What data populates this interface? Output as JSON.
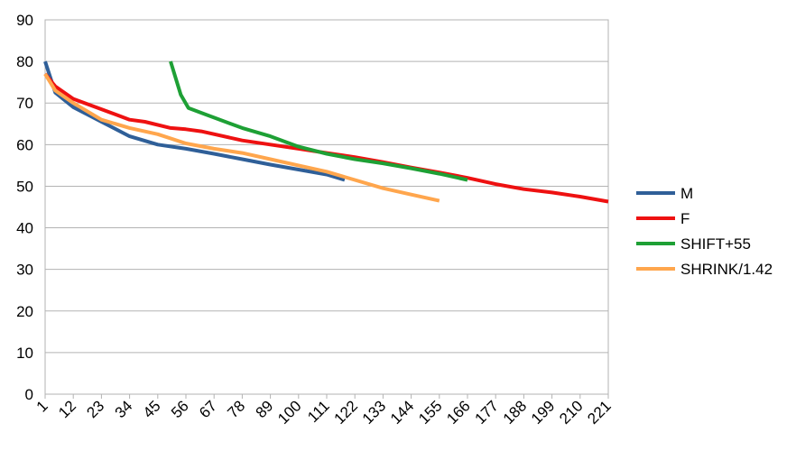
{
  "chart_data": {
    "type": "line",
    "xlim": [
      1,
      221
    ],
    "xticks": [
      1,
      12,
      23,
      34,
      45,
      56,
      67,
      78,
      89,
      100,
      111,
      122,
      133,
      144,
      155,
      166,
      177,
      188,
      199,
      210,
      221
    ],
    "ylim": [
      0,
      90
    ],
    "yticks": [
      0,
      10,
      20,
      30,
      40,
      50,
      60,
      70,
      80,
      90
    ],
    "grid": true,
    "legend": "right",
    "series": [
      {
        "name": "M",
        "color": "#2f5f98",
        "x": [
          1,
          5,
          12,
          23,
          34,
          45,
          56,
          67,
          78,
          89,
          100,
          111,
          118
        ],
        "values": [
          80,
          72.5,
          69,
          65.5,
          62,
          60,
          59,
          57.8,
          56.5,
          55.2,
          54,
          52.8,
          51.5
        ]
      },
      {
        "name": "F",
        "color": "#ee1111",
        "x": [
          1,
          5,
          12,
          23,
          34,
          40,
          50,
          56,
          62,
          78,
          89,
          100,
          111,
          122,
          133,
          144,
          155,
          166,
          177,
          188,
          199,
          210,
          221
        ],
        "values": [
          77,
          74,
          71,
          68.5,
          66,
          65.5,
          64,
          63.7,
          63.2,
          61,
          60,
          59,
          58,
          57,
          55.8,
          54.5,
          53.3,
          52,
          50.5,
          49.3,
          48.5,
          47.5,
          46.3
        ]
      },
      {
        "name": "SHIFT+55",
        "color": "#1ea035",
        "x": [
          50,
          54,
          57,
          67,
          78,
          89,
          100,
          111,
          122,
          133,
          144,
          155,
          166
        ],
        "values": [
          80,
          72,
          68.8,
          66.5,
          64,
          62,
          59.5,
          57.8,
          56.5,
          55.5,
          54.3,
          53,
          51.5
        ]
      },
      {
        "name": "SHRINK/1.42",
        "color": "#ffa64d",
        "x": [
          1,
          5,
          12,
          23,
          34,
          45,
          56,
          67,
          78,
          89,
          100,
          111,
          122,
          133,
          144,
          155
        ],
        "values": [
          77,
          73,
          70,
          66,
          64,
          62.5,
          60.3,
          59,
          58,
          56.5,
          55,
          53.5,
          51.5,
          49.5,
          48,
          46.5
        ]
      }
    ]
  }
}
